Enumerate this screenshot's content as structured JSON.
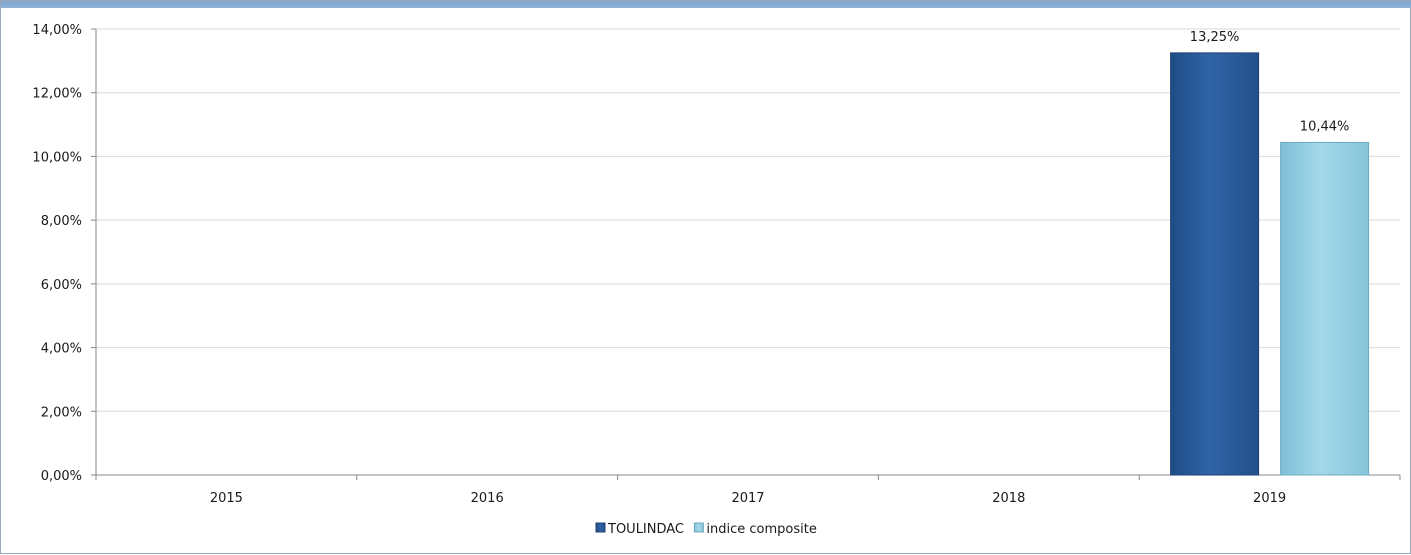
{
  "chart_data": {
    "type": "bar",
    "categories": [
      "2015",
      "2016",
      "2017",
      "2018",
      "2019"
    ],
    "series": [
      {
        "name": "TOULINDAC",
        "values": [
          null,
          null,
          null,
          null,
          13.25
        ],
        "color": "#2f64a8",
        "data_labels": [
          "",
          "",
          "",
          "",
          "13,25%"
        ]
      },
      {
        "name": "indice composite",
        "values": [
          null,
          null,
          null,
          null,
          10.44
        ],
        "color": "#93d0e4",
        "data_labels": [
          "",
          "",
          "",
          "",
          "10,44%"
        ]
      }
    ],
    "ylim": [
      0,
      14
    ],
    "y_ticks": [
      0,
      2,
      4,
      6,
      8,
      10,
      12,
      14
    ],
    "y_tick_labels": [
      "0,00%",
      "2,00%",
      "4,00%",
      "6,00%",
      "8,00%",
      "10,00%",
      "12,00%",
      "14,00%"
    ],
    "grid": true,
    "legend": "bottom-center",
    "title": "",
    "xlabel": "",
    "ylabel": ""
  }
}
